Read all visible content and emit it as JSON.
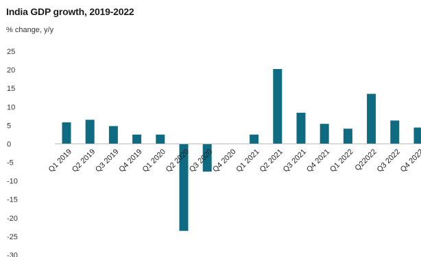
{
  "chart_data": {
    "type": "bar",
    "title": "India GDP growth, 2019-2022",
    "subtitle": "% change, y/y",
    "xlabel": "",
    "ylabel": "",
    "ylim": [
      -30,
      25
    ],
    "yticks": [
      25,
      20,
      15,
      10,
      5,
      0,
      -5,
      -10,
      -15,
      -20,
      -25,
      -30
    ],
    "grid": false,
    "bar_color": "#0f6b82",
    "categories": [
      "Q1 2019",
      "Q2 2019",
      "Q3 2019",
      "Q4 2019",
      "Q1 2020",
      "Q2 2020",
      "Q3 2020",
      "Q4 2020",
      "Q1 2021",
      "Q2 2021",
      "Q3 2021",
      "Q4 2021",
      "Q1 2022",
      "Q22022",
      "Q3 2022",
      "Q4 2022"
    ],
    "values": [
      5.8,
      6.5,
      4.8,
      2.5,
      2.5,
      -23.5,
      -7.5,
      0.0,
      2.5,
      20.2,
      8.4,
      5.4,
      4.1,
      13.5,
      6.3,
      4.4
    ]
  }
}
